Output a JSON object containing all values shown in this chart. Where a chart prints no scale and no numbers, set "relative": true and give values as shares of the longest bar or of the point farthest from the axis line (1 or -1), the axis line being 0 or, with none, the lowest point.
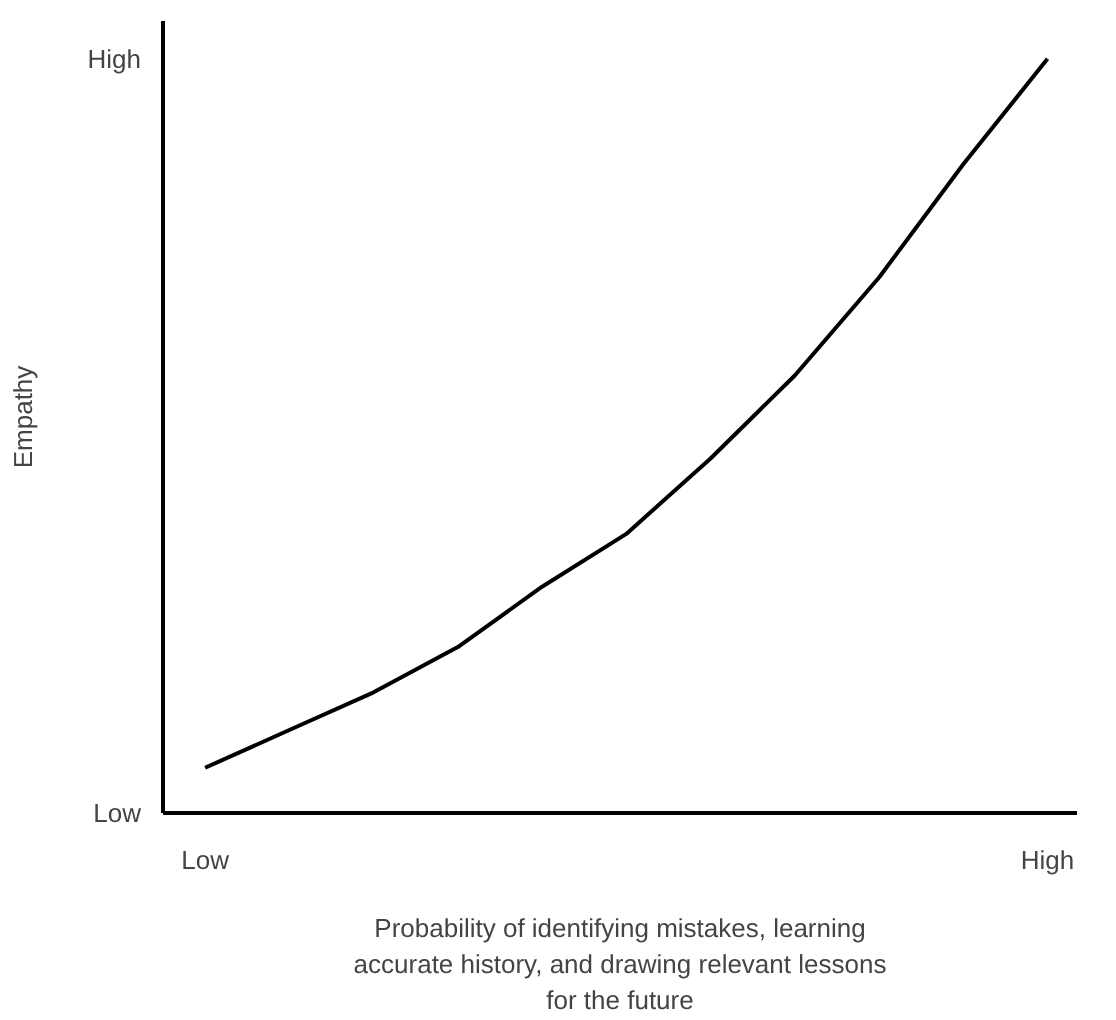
{
  "chart_data": {
    "type": "line",
    "relative": true,
    "xlabel": "Probability of identifying mistakes, learning\naccurate history, and drawing relevant lessons\nfor the future",
    "ylabel": "Empathy",
    "categories": [
      "Low",
      null,
      null,
      null,
      null,
      null,
      null,
      null,
      null,
      null,
      "High"
    ],
    "series": [
      {
        "color": "#000000",
        "values": [
          0.06,
          0.11,
          0.16,
          0.22,
          0.3,
          0.37,
          0.47,
          0.58,
          0.71,
          0.86,
          1.0
        ]
      }
    ],
    "annotations": [
      "Low",
      "High"
    ],
    "marker": "none",
    "line_style": "solid"
  }
}
